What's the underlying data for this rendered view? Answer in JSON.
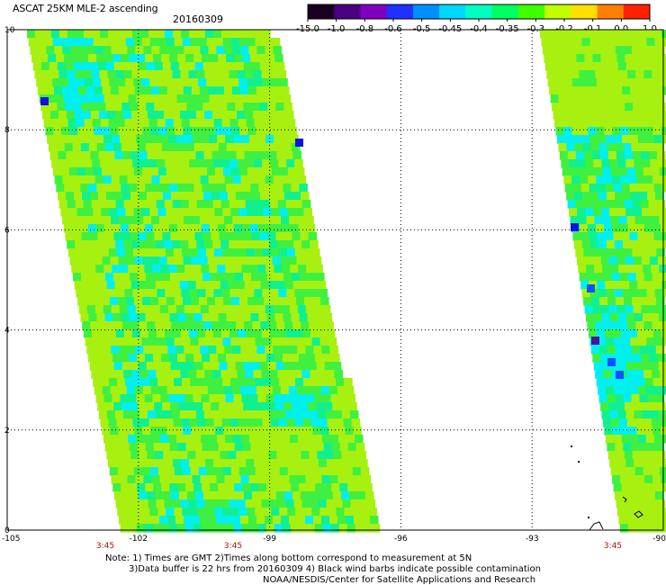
{
  "header": {
    "title": "ASCAT 25KM MLE-2 ascending",
    "date": "20160309"
  },
  "colorbar": {
    "labels": [
      "-15.0",
      "-1.0",
      "-0.8",
      "-0.6",
      "-0.5",
      "-0.45",
      "-0.4",
      "-0.35",
      "-0.3",
      "-0.2",
      "-0.1",
      "0.0",
      "1.0"
    ],
    "colors": [
      "#1a0020",
      "#4a0080",
      "#8000c0",
      "#2030ff",
      "#0090ff",
      "#00d8ff",
      "#00ffc0",
      "#00ff60",
      "#40ff00",
      "#c0ff00",
      "#ffe000",
      "#ff8000",
      "#ff2000"
    ]
  },
  "map": {
    "y_ticks": [
      "0",
      "2",
      "4",
      "6",
      "8",
      "10"
    ],
    "x_ticks": [
      "-105",
      "-102",
      "-99",
      "-96",
      "-93",
      "-90"
    ],
    "time_labels": [
      "3:45",
      "3:45",
      "3:45"
    ]
  },
  "notes": {
    "line1": "Note: 1) Times are GMT 2)Times along bottom correspond to measurement at 5N",
    "line2": "3)Data buffer is 22 hrs from 20160309 4) Black wind barbs indicate possible contamination",
    "line3": "NOAA/NESDIS/Center for Satellite Applications and Research"
  },
  "palette": {
    "lime": "#a8f010",
    "green": "#40f040",
    "mint": "#10f090",
    "cyan": "#00f0f0",
    "blue": "#1050ff",
    "deep_blue": "#1010e0",
    "purple": "#5010a0",
    "grid": "#000000",
    "time_label": "#b01000"
  }
}
